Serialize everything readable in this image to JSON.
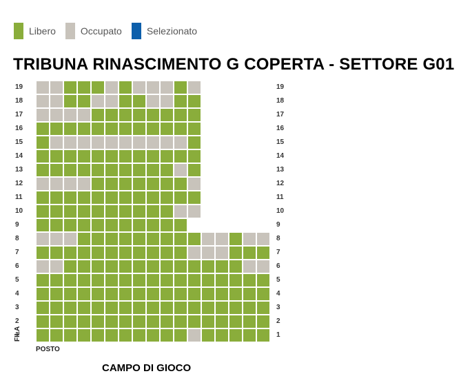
{
  "legend": [
    {
      "label": "Libero",
      "color": "#8aad3b"
    },
    {
      "label": "Occupato",
      "color": "#c8c3bb"
    },
    {
      "label": "Selezionato",
      "color": "#0d5fab"
    }
  ],
  "title": "TRIBUNA RINASCIMENTO G COPERTA - SETTORE G01",
  "axis": {
    "fila": "FILA",
    "posto": "POSTO"
  },
  "field_label": "CAMPO DI GIOCO",
  "colors": {
    "free": "#8aad3b",
    "occupied": "#c8c3bb",
    "selected": "#0d5fab"
  },
  "rows": [
    {
      "label": "19",
      "seats": "OOFFFOFOOOFO"
    },
    {
      "label": "18",
      "seats": "OOFFOOFFOOFF"
    },
    {
      "label": "17",
      "seats": "OOOOFFFFFFFF"
    },
    {
      "label": "16",
      "seats": "FFFFFFFFFFFF"
    },
    {
      "label": "15",
      "seats": "FOOOOOOOOOOF"
    },
    {
      "label": "14",
      "seats": "FFFFFFFFFFFF"
    },
    {
      "label": "13",
      "seats": "FFFFFFFFFFOF"
    },
    {
      "label": "12",
      "seats": "OOOOFFFFFFFO"
    },
    {
      "label": "11",
      "seats": "FFFFFFFFFFFF"
    },
    {
      "label": "10",
      "seats": "FFFFFFFFFFOO"
    },
    {
      "label": "9",
      "seats": "FFFFFFFFFFF"
    },
    {
      "label": "8",
      "seats": "OOOFFFFFFFFFOOFOO"
    },
    {
      "label": "7",
      "seats": "FFFFFFFFFFFOOOFFF"
    },
    {
      "label": "6",
      "seats": "OOFFFFFFFFFFFFFOO"
    },
    {
      "label": "5",
      "seats": "FFFFFFFFFFFFFFFFF"
    },
    {
      "label": "4",
      "seats": "FFFFFFFFFFFFFFFFF"
    },
    {
      "label": "3",
      "seats": "FFFFFFFFFFFFFFFFF"
    },
    {
      "label": "2",
      "seats": "FFFFFFFFFFFFFFFFF"
    },
    {
      "label": "1",
      "seats": "FFFFFFFFFFFOFFFFF"
    }
  ]
}
